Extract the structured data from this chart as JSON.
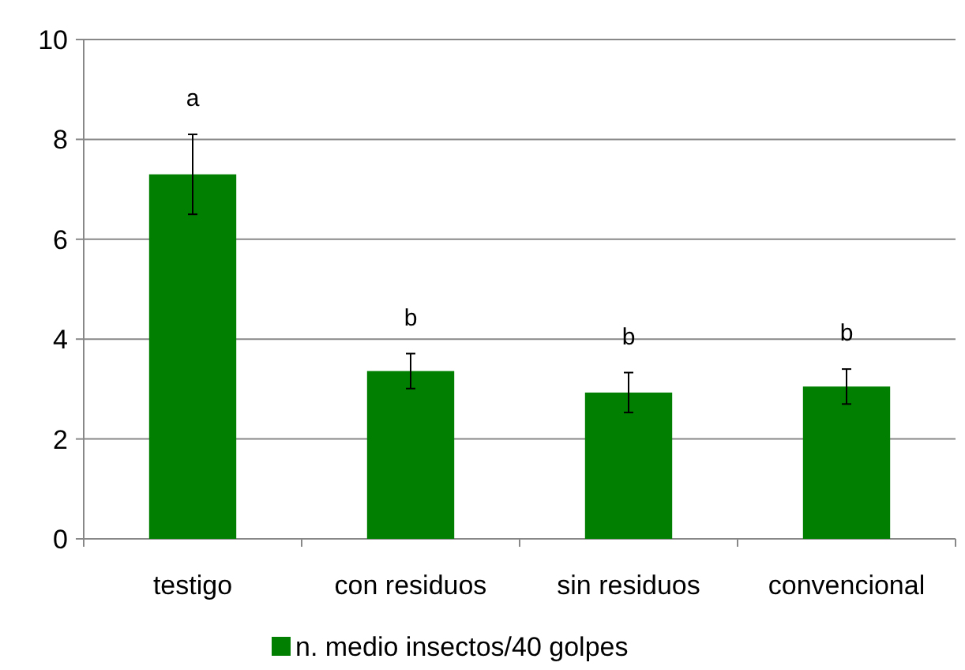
{
  "chart_data": {
    "type": "bar",
    "categories": [
      "testigo",
      "con residuos",
      "sin residuos",
      "convencional"
    ],
    "series": [
      {
        "name": "n. medio insectos/40 golpes",
        "color": "#007f00",
        "values": [
          7.3,
          3.36,
          2.93,
          3.05
        ],
        "errors": [
          0.8,
          0.35,
          0.4,
          0.35
        ]
      }
    ],
    "ylim": [
      0,
      10
    ],
    "yticks": [
      0,
      2,
      4,
      6,
      8,
      10
    ],
    "grid": "y",
    "legend": "bottom",
    "annotations": [
      "a",
      "b",
      "b",
      "b"
    ]
  }
}
